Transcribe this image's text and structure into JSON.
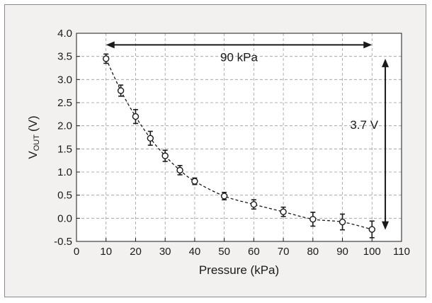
{
  "chart_data": {
    "type": "scatter",
    "title": "",
    "xlabel": "Pressure (kPa)",
    "ylabel_main": "V",
    "ylabel_sub": "OUT",
    "ylabel_unit": "(V)",
    "xlim": [
      0,
      110
    ],
    "ylim": [
      -0.5,
      4.0
    ],
    "x_ticks": [
      "0",
      "10",
      "20",
      "30",
      "40",
      "50",
      "60",
      "70",
      "80",
      "90",
      "100",
      "110"
    ],
    "y_ticks": [
      "-0.5",
      "0.0",
      "0.5",
      "1.0",
      "1.5",
      "2.0",
      "2.5",
      "3.0",
      "3.5",
      "4.0"
    ],
    "grid": true,
    "line_style": "dashed",
    "marker": "open-circle",
    "series": [
      {
        "x": [
          10,
          15,
          20,
          25,
          30,
          35,
          40,
          50,
          60,
          70,
          80,
          90,
          100
        ],
        "y": [
          3.45,
          2.76,
          2.2,
          1.73,
          1.35,
          1.04,
          0.8,
          0.48,
          0.3,
          0.14,
          -0.02,
          -0.08,
          -0.24
        ],
        "err": [
          0.1,
          0.12,
          0.15,
          0.15,
          0.12,
          0.1,
          0.07,
          0.08,
          0.1,
          0.1,
          0.15,
          0.17,
          0.18
        ]
      }
    ],
    "annotations": {
      "horizontal": {
        "text": "90 kPa",
        "x_from": 10,
        "x_to": 100,
        "y": 3.75
      },
      "vertical": {
        "text": "3.7 V",
        "x": 104.5,
        "y_from": 3.45,
        "y_to": -0.25
      }
    },
    "colors": {
      "frame_bg": "#f2f1f0",
      "plot_bg": "#ffffff",
      "ink": "#1a1a1a",
      "grid": "#9a9a9a"
    }
  }
}
